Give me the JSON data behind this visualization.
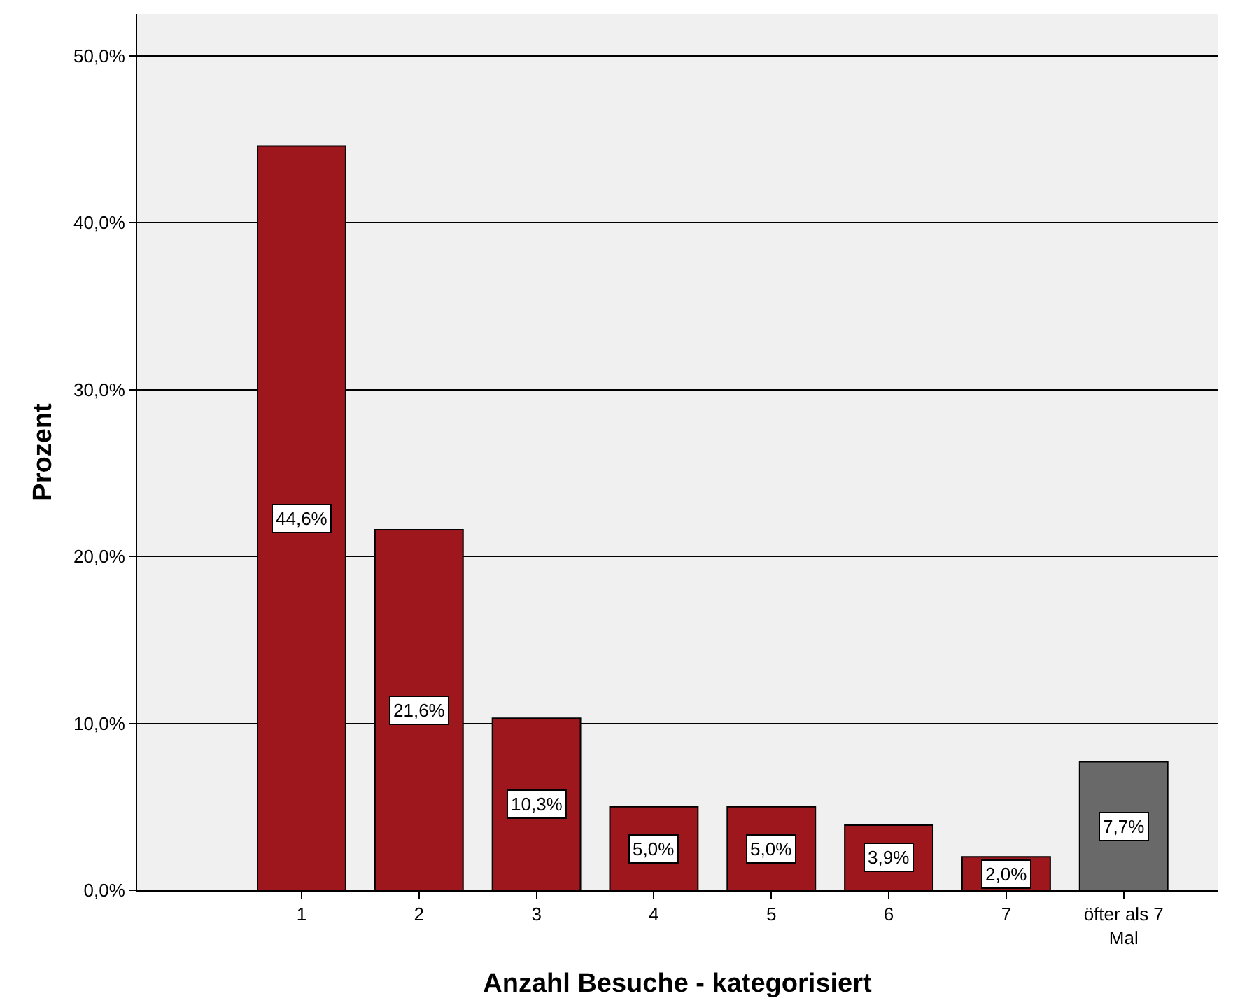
{
  "chart_data": {
    "type": "bar",
    "xlabel": "Anzahl Besuche - kategorisiert",
    "ylabel": "Prozent",
    "categories": [
      "1",
      "2",
      "3",
      "4",
      "5",
      "6",
      "7",
      "öfter als 7 Mal"
    ],
    "values": [
      44.6,
      21.6,
      10.3,
      5.0,
      5.0,
      3.9,
      2.0,
      7.7
    ],
    "colors": [
      "#9e171c",
      "#9e171c",
      "#9e171c",
      "#9e171c",
      "#9e171c",
      "#9e171c",
      "#9e171c",
      "#696969"
    ],
    "value_labels": [
      "44,6%",
      "21,6%",
      "10,3%",
      "5,0%",
      "5,0%",
      "3,9%",
      "2,0%",
      "7,7%"
    ],
    "ylim": [
      0,
      52.5
    ],
    "yticks": [
      {
        "value": 0,
        "label": "0,0%"
      },
      {
        "value": 10,
        "label": "10,0%"
      },
      {
        "value": 20,
        "label": "20,0%"
      },
      {
        "value": 30,
        "label": "30,0%"
      },
      {
        "value": 40,
        "label": "40,0%"
      },
      {
        "value": 50,
        "label": "50,0%"
      }
    ],
    "grid": "y",
    "legend": false
  }
}
